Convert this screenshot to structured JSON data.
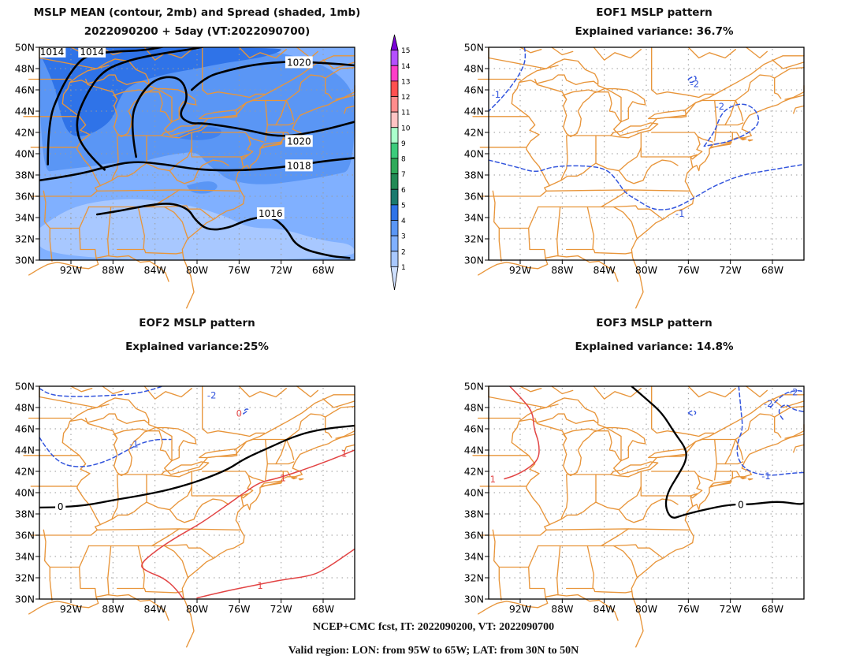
{
  "panels": [
    {
      "id": "mean",
      "title1": "MSLP MEAN (contour, 2mb) and Spread (shaded, 1mb)",
      "title2": "2022090200 + 5day (VT:2022090700)",
      "contour_labels": [
        "1014",
        "1014",
        "1020",
        "1020",
        "1018",
        "1016"
      ]
    },
    {
      "id": "eof1",
      "title1": "EOF1 MSLP pattern",
      "title2": "Explained variance: 36.7%",
      "contour_labels": [
        "-1",
        "-2",
        "-2",
        "-1"
      ]
    },
    {
      "id": "eof2",
      "title1": "EOF2 MSLP pattern",
      "title2": "Explained variance:25%",
      "contour_labels": [
        "-2",
        "0",
        "-1",
        "0",
        "1",
        "1",
        "1"
      ]
    },
    {
      "id": "eof3",
      "title1": "EOF3 MSLP pattern",
      "title2": "Explained variance: 14.8%",
      "contour_labels": [
        "-2",
        "-2",
        "-1",
        "1",
        "0"
      ]
    }
  ],
  "axes": {
    "lat_ticks": [
      "50N",
      "48N",
      "46N",
      "44N",
      "42N",
      "40N",
      "38N",
      "36N",
      "34N",
      "32N",
      "30N"
    ],
    "lon_ticks": [
      "92W",
      "88W",
      "84W",
      "80W",
      "76W",
      "72W",
      "68W"
    ]
  },
  "colorbar": {
    "labels": [
      "1",
      "2",
      "3",
      "4",
      "5",
      "6",
      "7",
      "8",
      "9",
      "10",
      "11",
      "12",
      "13",
      "14",
      "15"
    ],
    "colors": [
      "#cfe0ff",
      "#a8c8ff",
      "#80b0ff",
      "#5a96f5",
      "#2f73e8",
      "#1a7a6e",
      "#228a55",
      "#2faa5a",
      "#3ccc7c",
      "#aaffcc",
      "#ffc4c4",
      "#ff8c8c",
      "#ff5050",
      "#ff3cc8",
      "#b450ff",
      "#7a00d8"
    ]
  },
  "colors": {
    "coast": "#e8953a",
    "grid": "#9a9a9a",
    "neg": "#3355dd",
    "pos": "#e24444",
    "mean": "#000000"
  },
  "footer": {
    "line1": "NCEP+CMC fcst, IT: 2022090200, VT: 2022090700",
    "line2": "Valid region: LON: from 95W to 65W; LAT: from 30N to 50N"
  }
}
